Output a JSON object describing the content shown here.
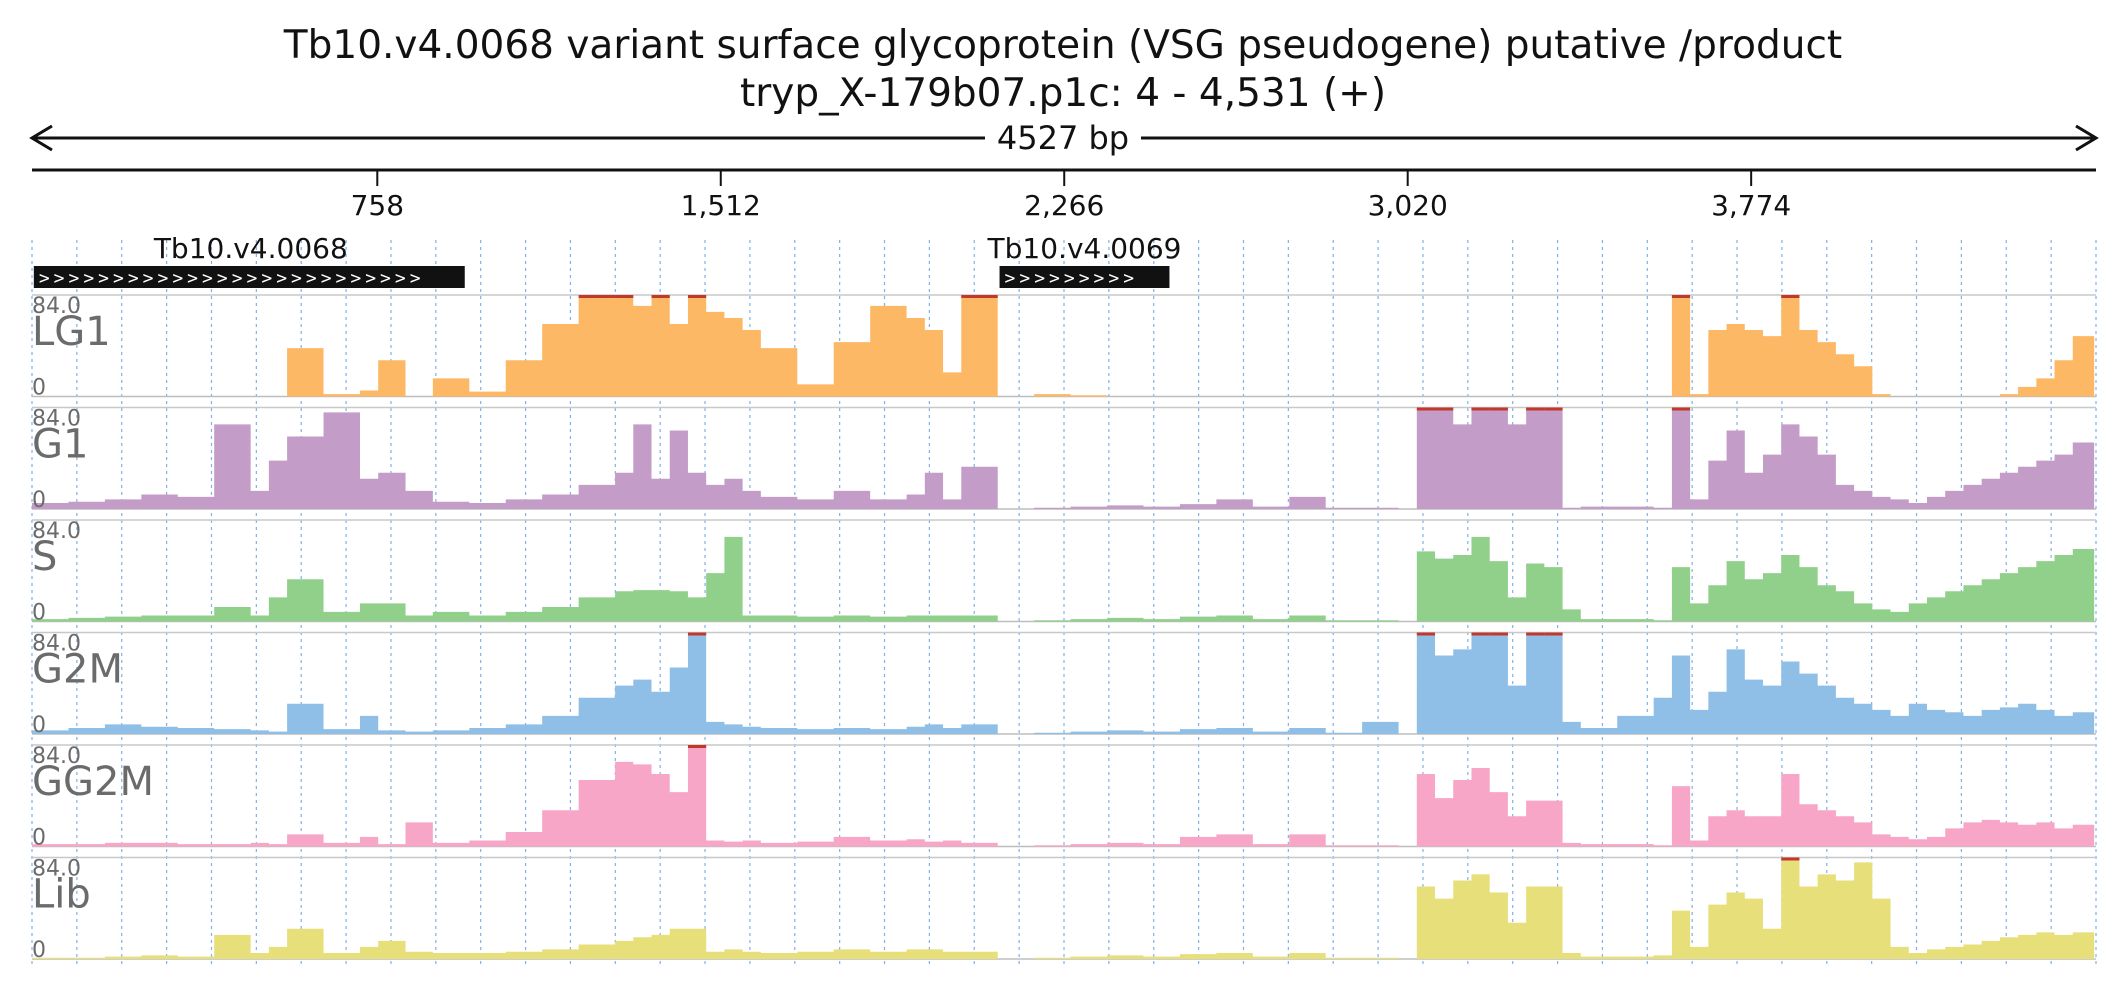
{
  "header": {
    "title_line1": "Tb10.v4.0068  variant surface glycoprotein (VSG  pseudogene)  putative /product",
    "title_line2": "tryp_X-179b07.p1c: 4 - 4,531 (+)",
    "length_label": "4527 bp"
  },
  "ruler": {
    "ticks": [
      {
        "pos": 758,
        "label": "758"
      },
      {
        "pos": 1512,
        "label": "1,512"
      },
      {
        "pos": 2266,
        "label": "2,266"
      },
      {
        "pos": 3020,
        "label": "3,020"
      },
      {
        "pos": 3774,
        "label": "3,774"
      }
    ]
  },
  "genes": [
    {
      "name": "Tb10.v4.0068",
      "start": 4,
      "end": 950,
      "strand": "+"
    },
    {
      "name": "Tb10.v4.0069",
      "start": 2124,
      "end": 2497,
      "strand": "+"
    }
  ],
  "chart_data": {
    "type": "area",
    "x_unit": "bp",
    "xlim": [
      4,
      4531
    ],
    "ylim": [
      0,
      84
    ],
    "y_max_label": "84.0",
    "y_min_label": "0",
    "x": [
      0,
      80,
      160,
      240,
      320,
      400,
      480,
      520,
      560,
      640,
      720,
      760,
      820,
      880,
      960,
      1040,
      1120,
      1200,
      1280,
      1320,
      1360,
      1400,
      1440,
      1480,
      1520,
      1560,
      1600,
      1680,
      1760,
      1840,
      1920,
      1960,
      2000,
      2040,
      2080,
      2120,
      2200,
      2280,
      2360,
      2440,
      2520,
      2600,
      2680,
      2760,
      2840,
      2920,
      3000,
      3040,
      3080,
      3120,
      3160,
      3200,
      3240,
      3280,
      3320,
      3360,
      3400,
      3480,
      3560,
      3600,
      3640,
      3680,
      3720,
      3760,
      3800,
      3840,
      3880,
      3920,
      3960,
      4000,
      4040,
      4080,
      4120,
      4160,
      4200,
      4240,
      4280,
      4320,
      4360,
      4400,
      4440,
      4480,
      4527
    ],
    "series": [
      {
        "name": "LG1",
        "color": "#fdb866",
        "values": [
          0,
          0,
          0,
          0,
          0,
          0,
          0,
          0,
          40,
          2,
          5,
          30,
          0,
          15,
          4,
          30,
          60,
          84,
          84,
          75,
          84,
          60,
          84,
          70,
          65,
          55,
          40,
          10,
          45,
          75,
          65,
          55,
          20,
          84,
          84,
          0,
          2,
          1,
          0,
          0,
          0,
          0,
          0,
          0,
          0,
          0,
          0,
          0,
          0,
          0,
          0,
          0,
          0,
          0,
          0,
          0,
          0,
          0,
          0,
          84,
          2,
          55,
          60,
          55,
          50,
          84,
          55,
          45,
          35,
          25,
          2,
          0,
          0,
          0,
          0,
          0,
          0,
          2,
          8,
          15,
          30,
          50,
          60
        ]
      },
      {
        "name": "G1",
        "color": "#c49cc8",
        "values": [
          5,
          6,
          8,
          12,
          10,
          70,
          15,
          40,
          60,
          80,
          25,
          30,
          15,
          6,
          5,
          8,
          12,
          20,
          30,
          70,
          25,
          65,
          30,
          20,
          25,
          15,
          10,
          8,
          15,
          8,
          12,
          30,
          8,
          35,
          35,
          0,
          1,
          2,
          3,
          2,
          4,
          8,
          2,
          10,
          1,
          1,
          0,
          84,
          84,
          70,
          84,
          84,
          70,
          84,
          84,
          1,
          2,
          2,
          1,
          84,
          8,
          40,
          65,
          30,
          45,
          70,
          60,
          45,
          20,
          15,
          10,
          8,
          5,
          10,
          15,
          20,
          25,
          30,
          35,
          40,
          45,
          55,
          65
        ]
      },
      {
        "name": "S",
        "color": "#90d08a",
        "values": [
          2,
          3,
          4,
          5,
          5,
          12,
          5,
          20,
          35,
          8,
          15,
          15,
          5,
          8,
          5,
          8,
          12,
          20,
          25,
          26,
          26,
          25,
          20,
          40,
          70,
          5,
          5,
          4,
          5,
          4,
          5,
          5,
          5,
          5,
          5,
          0,
          1,
          2,
          3,
          2,
          4,
          5,
          2,
          5,
          1,
          1,
          0,
          58,
          52,
          55,
          70,
          50,
          20,
          48,
          45,
          10,
          2,
          2,
          1,
          45,
          15,
          30,
          50,
          35,
          40,
          55,
          45,
          30,
          25,
          15,
          10,
          8,
          15,
          20,
          25,
          30,
          35,
          40,
          45,
          50,
          55,
          60,
          25
        ]
      },
      {
        "name": "G2M",
        "color": "#8fbfe6",
        "values": [
          3,
          5,
          8,
          6,
          5,
          4,
          3,
          2,
          25,
          4,
          15,
          3,
          2,
          3,
          5,
          8,
          15,
          30,
          40,
          45,
          35,
          55,
          84,
          10,
          8,
          6,
          5,
          4,
          5,
          4,
          6,
          8,
          5,
          8,
          8,
          0,
          1,
          2,
          3,
          2,
          4,
          5,
          2,
          5,
          1,
          10,
          0,
          84,
          65,
          70,
          84,
          84,
          40,
          84,
          84,
          10,
          5,
          15,
          30,
          65,
          20,
          35,
          70,
          45,
          40,
          60,
          50,
          40,
          30,
          25,
          20,
          15,
          25,
          20,
          18,
          15,
          20,
          22,
          25,
          20,
          15,
          18,
          15
        ]
      },
      {
        "name": "GG2M",
        "color": "#f7a6c8",
        "values": [
          2,
          2,
          3,
          3,
          2,
          2,
          3,
          2,
          10,
          3,
          8,
          2,
          20,
          3,
          5,
          12,
          30,
          55,
          70,
          68,
          60,
          45,
          84,
          5,
          4,
          5,
          3,
          4,
          8,
          5,
          6,
          4,
          5,
          3,
          3,
          0,
          1,
          2,
          3,
          2,
          8,
          10,
          2,
          10,
          1,
          1,
          0,
          60,
          40,
          55,
          65,
          45,
          25,
          38,
          38,
          3,
          2,
          2,
          1,
          50,
          5,
          25,
          30,
          25,
          25,
          60,
          35,
          30,
          25,
          20,
          10,
          8,
          6,
          8,
          15,
          20,
          22,
          20,
          18,
          20,
          15,
          18,
          25
        ]
      },
      {
        "name": "Lib",
        "color": "#e6df7a",
        "values": [
          1,
          1,
          2,
          3,
          2,
          20,
          5,
          10,
          25,
          5,
          10,
          15,
          6,
          5,
          5,
          6,
          8,
          12,
          15,
          18,
          20,
          25,
          25,
          6,
          8,
          6,
          5,
          6,
          8,
          6,
          8,
          8,
          6,
          6,
          6,
          0,
          1,
          2,
          3,
          2,
          4,
          5,
          2,
          5,
          1,
          1,
          0,
          60,
          50,
          65,
          70,
          55,
          30,
          60,
          60,
          5,
          2,
          2,
          3,
          40,
          10,
          45,
          55,
          50,
          25,
          84,
          60,
          70,
          65,
          80,
          50,
          10,
          5,
          8,
          10,
          12,
          15,
          18,
          20,
          22,
          20,
          22,
          25
        ]
      }
    ]
  }
}
